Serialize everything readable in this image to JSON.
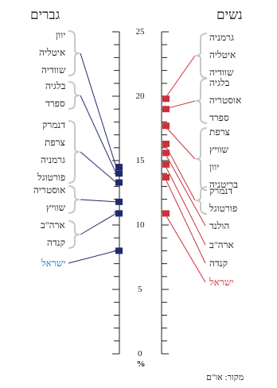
{
  "headers": {
    "men": "גברים",
    "women": "נשים"
  },
  "source": "מקור: או\"ם",
  "colors": {
    "men": "#222a6e",
    "women": "#c9323a",
    "israel_men_label": "#2277bb",
    "israel_women_label": "#c9323a",
    "bracket": "#c8c8c8",
    "axis": "#222222"
  },
  "chart_data": {
    "type": "dot-range",
    "ylabel": "%",
    "ylim": [
      0,
      25
    ],
    "yticks": [
      0,
      5,
      10,
      15,
      20,
      25
    ],
    "men": {
      "title": "גברים",
      "groups": [
        {
          "value": 14.5,
          "countries": [
            "יוון",
            "איטליה",
            "שוודיה"
          ]
        },
        {
          "value": 14.0,
          "countries": [
            "בלגיה",
            "ספרד"
          ]
        },
        {
          "value": 13.3,
          "countries": [
            "דנמרק",
            "צרפת",
            "גרמניה",
            "פורטוגל"
          ]
        },
        {
          "value": 11.8,
          "countries": [
            "אוסטריה",
            "שוויץ"
          ]
        },
        {
          "value": 10.9,
          "countries": [
            "ארה\"ב",
            "קנדה"
          ]
        },
        {
          "value": 8.0,
          "countries": [
            "ישראל"
          ],
          "highlight": true
        }
      ]
    },
    "women": {
      "title": "נשים",
      "groups": [
        {
          "value": 19.8,
          "countries": [
            "גרמניה",
            "איטליה",
            "שוודיה"
          ]
        },
        {
          "value": 19.0,
          "countries": [
            "בלגיה",
            "אוסטריה",
            "ספרד"
          ]
        },
        {
          "value": 17.7,
          "countries": [
            "צרפת",
            "שוויץ",
            "יוון",
            "בריטניה"
          ]
        },
        {
          "value": 16.3,
          "countries": [
            "דנמרק",
            "פורטוגל"
          ]
        },
        {
          "value": 15.6,
          "countries": [
            "הולנד"
          ]
        },
        {
          "value": 14.7,
          "countries": [
            "ארה\"ב"
          ]
        },
        {
          "value": 13.7,
          "countries": [
            "קנדה"
          ]
        },
        {
          "value": 10.9,
          "countries": [
            "ישראל"
          ],
          "highlight": true
        }
      ]
    }
  }
}
